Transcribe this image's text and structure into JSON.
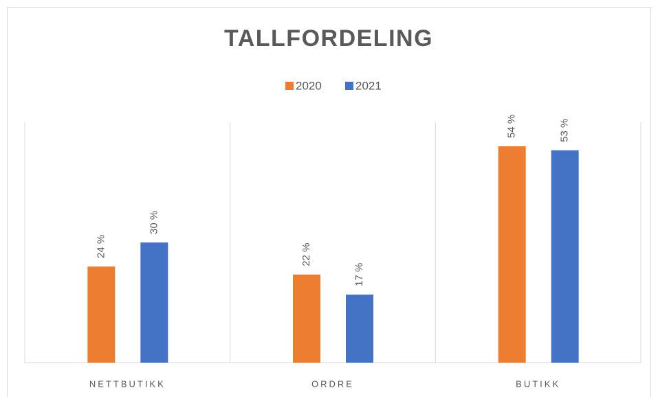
{
  "chart_data": {
    "type": "bar",
    "title": "TALLFORDELING",
    "categories": [
      "NETTBUTIKK",
      "ORDRE",
      "BUTIKK"
    ],
    "series": [
      {
        "name": "2020",
        "color": "#ed7d31",
        "values": [
          24,
          22,
          54
        ],
        "value_labels": [
          "24 %",
          "22 %",
          "54 %"
        ]
      },
      {
        "name": "2021",
        "color": "#4472c4",
        "values": [
          30,
          17,
          53
        ],
        "value_labels": [
          "30 %",
          "17 %",
          "53 %"
        ]
      }
    ],
    "ylim": [
      0,
      60
    ],
    "legend": "top"
  }
}
